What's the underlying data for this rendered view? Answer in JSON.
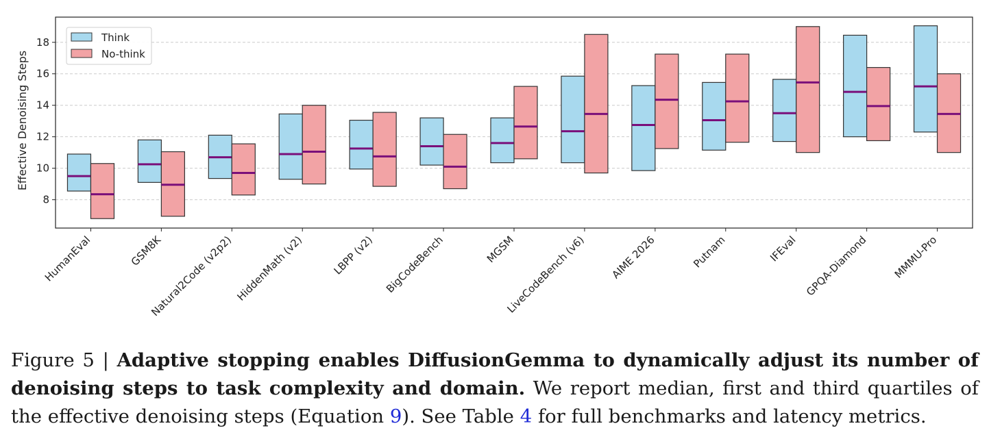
{
  "chart_data": {
    "type": "box",
    "ylabel": "Effective Denoising Steps",
    "xlabel": "",
    "ylim": [
      6.2,
      19.6
    ],
    "yticks": [
      8,
      10,
      12,
      14,
      16,
      18
    ],
    "grid": "horizontal-dashed",
    "legend": {
      "position": "top-left",
      "entries": [
        "Think",
        "No-think"
      ]
    },
    "colors": {
      "Think": "#a8d9ee",
      "No-think": "#f2a3a5",
      "median": "#7a0f7a",
      "edge": "#333333"
    },
    "categories": [
      "HumanEval",
      "GSM8K",
      "Natural2Code (v2p2)",
      "HiddenMath (v2)",
      "LBPP (v2)",
      "BigCodeBench",
      "MGSM",
      "LiveCodeBench (v6)",
      "AIME 2026",
      "Putnam",
      "IFEval",
      "GPQA-Diamond",
      "MMMU-Pro"
    ],
    "series": [
      {
        "name": "Think",
        "q1": [
          8.55,
          9.1,
          9.35,
          9.3,
          9.95,
          10.2,
          10.35,
          10.35,
          9.85,
          11.15,
          11.7,
          12.0,
          12.3
        ],
        "median": [
          9.5,
          10.25,
          10.7,
          10.9,
          11.25,
          11.4,
          11.6,
          12.35,
          12.75,
          13.05,
          13.5,
          14.85,
          15.2
        ],
        "q3": [
          10.9,
          11.8,
          12.1,
          13.45,
          13.05,
          13.2,
          13.2,
          15.85,
          15.25,
          15.45,
          15.65,
          18.45,
          19.05
        ]
      },
      {
        "name": "No-think",
        "q1": [
          6.8,
          6.95,
          8.3,
          9.0,
          8.85,
          8.7,
          10.6,
          9.7,
          11.25,
          11.65,
          11.0,
          11.75,
          11.0
        ],
        "median": [
          8.35,
          8.95,
          9.7,
          11.05,
          10.75,
          10.1,
          12.65,
          13.45,
          14.35,
          14.25,
          15.45,
          13.95,
          13.45
        ],
        "q3": [
          10.3,
          11.05,
          11.55,
          14.0,
          13.55,
          12.15,
          15.2,
          18.5,
          17.25,
          17.25,
          19.0,
          16.4,
          16.0
        ]
      }
    ]
  },
  "caption": {
    "prefix": "Figure 5 | ",
    "bold": "Adaptive stopping enables DiffusionGemma to dynamically adjust its number of denoising steps to task complexity and domain.",
    "text1": " We report median, first and third quartiles of the effective denoising steps (Equation ",
    "ref1": "9",
    "text2": "). See Table ",
    "ref2": "4",
    "text3": " for full benchmarks and latency metrics."
  }
}
